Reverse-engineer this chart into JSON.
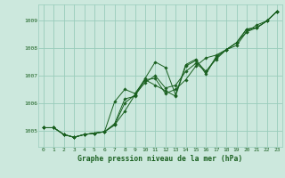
{
  "title": "Graphe pression niveau de la mer (hPa)",
  "bg_color": "#cce8dd",
  "grid_color": "#99ccbb",
  "line_color": "#1a6020",
  "xlim": [
    -0.5,
    23.5
  ],
  "ylim": [
    1004.4,
    1009.6
  ],
  "yticks": [
    1005,
    1006,
    1007,
    1008,
    1009
  ],
  "xticks": [
    0,
    1,
    2,
    3,
    4,
    5,
    6,
    7,
    8,
    9,
    10,
    11,
    12,
    13,
    14,
    15,
    16,
    17,
    18,
    19,
    20,
    21,
    22,
    23
  ],
  "series": [
    [
      1005.1,
      1005.1,
      1004.85,
      1004.75,
      1004.85,
      1004.9,
      1004.95,
      1005.2,
      1006.0,
      1006.3,
      1006.9,
      1007.5,
      1007.3,
      1006.3,
      1007.4,
      1007.6,
      1007.05,
      1007.7,
      1007.95,
      1008.2,
      1008.7,
      1008.75,
      1009.0,
      1009.35
    ],
    [
      1005.1,
      1005.1,
      1004.85,
      1004.75,
      1004.85,
      1004.9,
      1004.95,
      1005.2,
      1005.7,
      1006.3,
      1006.75,
      1007.0,
      1006.55,
      1006.65,
      1007.15,
      1007.45,
      1007.15,
      1007.6,
      1007.95,
      1008.1,
      1008.6,
      1008.75,
      1009.0,
      1009.35
    ],
    [
      1005.1,
      1005.1,
      1004.85,
      1004.75,
      1004.85,
      1004.9,
      1004.95,
      1006.05,
      1006.5,
      1006.35,
      1006.85,
      1006.9,
      1006.35,
      1006.5,
      1006.85,
      1007.35,
      1007.65,
      1007.75,
      1007.95,
      1008.2,
      1008.7,
      1008.75,
      1009.0,
      1009.35
    ],
    [
      1005.1,
      1005.1,
      1004.85,
      1004.75,
      1004.85,
      1004.9,
      1004.95,
      1005.25,
      1006.15,
      1006.25,
      1006.85,
      1006.65,
      1006.45,
      1006.25,
      1007.35,
      1007.55,
      1007.15,
      1007.65,
      1007.95,
      1008.2,
      1008.6,
      1008.85,
      1009.0,
      1009.35
    ]
  ]
}
